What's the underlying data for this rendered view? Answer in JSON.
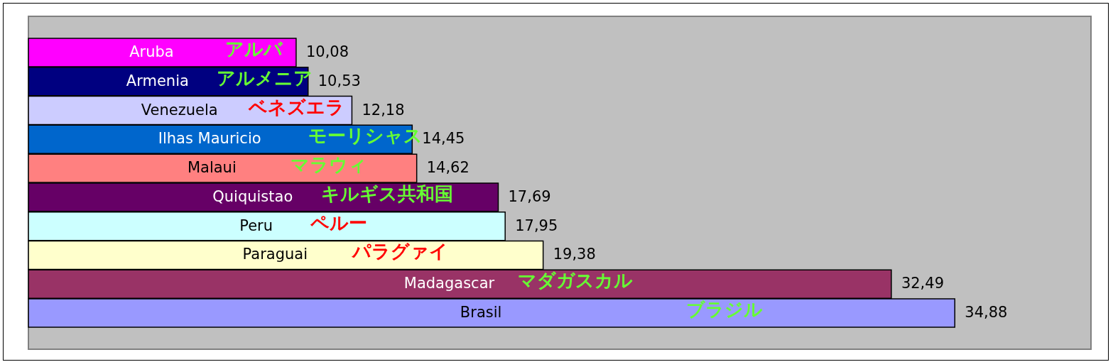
{
  "chart_data": {
    "type": "bar",
    "orientation": "horizontal",
    "categories": [
      "Aruba",
      "Armenia",
      "Venezuela",
      "Ilhas Mauricio",
      "Malaui",
      "Quiquistao",
      "Peru",
      "Paraguai",
      "Madagascar",
      "Brasil"
    ],
    "values": [
      10.08,
      10.53,
      12.18,
      14.45,
      14.62,
      17.69,
      17.95,
      19.38,
      32.49,
      34.88
    ],
    "colors": [
      "#ff00ff",
      "#000080",
      "#ccccff",
      "#0066cc",
      "#ff8080",
      "#660066",
      "#ccffff",
      "#ffffcc",
      "#993366",
      "#9999ff"
    ],
    "value_labels": [
      "10,08",
      "10,53",
      "12,18",
      "14,45",
      "14,62",
      "17,69",
      "17,95",
      "19,38",
      "32,49",
      "34,88"
    ],
    "annotations": [
      {
        "text": "アルバ",
        "x": 8.5,
        "y": "Aruba"
      },
      {
        "text": "アルメニア",
        "x": 8.9,
        "y": "Armenia"
      },
      {
        "text": "ベネズエラ",
        "x": 10.1,
        "y": "Venezuela"
      },
      {
        "text": "モーリシャス",
        "x": 12.7,
        "y": "Ilhas Mauricio"
      },
      {
        "text": "マラウィ",
        "x": 11.3,
        "y": "Malaui"
      },
      {
        "text": "キルギス共和国",
        "x": 13.5,
        "y": "Quiquistao"
      },
      {
        "text": "ペルー",
        "x": 11.7,
        "y": "Peru"
      },
      {
        "text": "パラグァイ",
        "x": 14.0,
        "y": "Paraguai"
      },
      {
        "text": "マダガスカル",
        "x": 20.6,
        "y": "Madagascar"
      },
      {
        "text": "ブラジル",
        "x": 26.2,
        "y": "Brasil"
      }
    ]
  }
}
